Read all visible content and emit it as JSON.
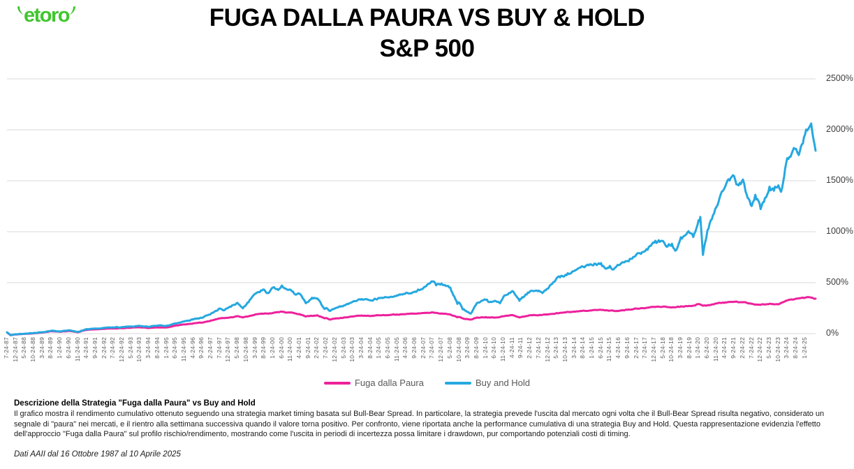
{
  "brand": {
    "logo_text": "etoro",
    "color": "#3FC62D"
  },
  "header": {
    "title_line1": "FUGA DALLA PAURA VS BUY & HOLD",
    "title_line2": "S&P 500"
  },
  "chart_data": {
    "type": "line",
    "title": "FUGA DALLA PAURA VS BUY & HOLD S&P 500",
    "xlabel": "",
    "ylabel": "",
    "ylim": [
      0,
      2500
    ],
    "y_tick_labels": [
      "0%",
      "500%",
      "1000%",
      "1500%",
      "2000%",
      "2500%"
    ],
    "grid": "horizontal",
    "legend_position": "bottom-center",
    "x_max_index": 91.2,
    "x_tick_labels": [
      "7-24-87",
      "12-24-87",
      "5-24-88",
      "10-24-88",
      "3-24-89",
      "8-24-89",
      "1-24-90",
      "6-24-90",
      "11-24-90",
      "4-24-91",
      "9-24-91",
      "2-24-92",
      "7-24-92",
      "12-24-92",
      "5-24-93",
      "10-24-93",
      "3-24-94",
      "8-24-94",
      "1-24-95",
      "6-24-95",
      "11-24-95",
      "4-24-96",
      "9-24-96",
      "2-24-97",
      "7-24-97",
      "12-24-97",
      "5-24-98",
      "10-24-98",
      "3-24-99",
      "8-24-99",
      "1-24-00",
      "6-24-00",
      "11-24-00",
      "4-24-01",
      "9-24-01",
      "2-24-02",
      "7-24-02",
      "12-24-02",
      "5-24-03",
      "10-24-03",
      "3-24-04",
      "8-24-04",
      "1-24-05",
      "6-24-05",
      "11-24-05",
      "4-24-06",
      "9-24-06",
      "2-24-07",
      "7-24-07",
      "12-24-07",
      "5-24-08",
      "10-24-08",
      "3-24-09",
      "8-24-09",
      "1-24-10",
      "6-24-10",
      "11-24-10",
      "4-24-11",
      "9-24-11",
      "2-24-12",
      "7-24-12",
      "12-24-12",
      "5-24-13",
      "10-24-13",
      "3-24-14",
      "8-24-14",
      "1-24-15",
      "6-24-15",
      "11-24-15",
      "4-24-16",
      "9-24-16",
      "2-24-17",
      "7-24-17",
      "12-24-17",
      "5-24-18",
      "10-24-18",
      "3-24-19",
      "8-24-19",
      "1-24-20",
      "6-24-20",
      "11-24-20",
      "4-24-21",
      "9-24-21",
      "2-24-22",
      "7-24-22",
      "12-24-22",
      "5-24-23",
      "10-24-23",
      "3-24-24",
      "8-24-24",
      "1-24-25"
    ],
    "value_unit": "% cumulative return",
    "series": [
      {
        "name": "Fuga dalla Paura",
        "color": "#ED219B",
        "points": [
          [
            0,
            12
          ],
          [
            0.4,
            -16
          ],
          [
            1,
            -8
          ],
          [
            2,
            -3
          ],
          [
            3,
            3
          ],
          [
            4,
            10
          ],
          [
            5,
            24
          ],
          [
            6,
            18
          ],
          [
            7,
            27
          ],
          [
            8,
            14
          ],
          [
            9,
            38
          ],
          [
            10,
            42
          ],
          [
            11,
            48
          ],
          [
            12,
            50
          ],
          [
            13,
            54
          ],
          [
            14,
            58
          ],
          [
            15,
            62
          ],
          [
            16,
            55
          ],
          [
            17,
            61
          ],
          [
            18,
            60
          ],
          [
            19,
            78
          ],
          [
            20,
            90
          ],
          [
            21,
            100
          ],
          [
            22,
            108
          ],
          [
            23,
            128
          ],
          [
            24,
            150
          ],
          [
            25,
            156
          ],
          [
            26,
            172
          ],
          [
            26.6,
            158
          ],
          [
            27,
            166
          ],
          [
            28,
            188
          ],
          [
            29,
            196
          ],
          [
            30,
            202
          ],
          [
            31,
            216
          ],
          [
            31.5,
            206
          ],
          [
            32,
            206
          ],
          [
            33,
            192
          ],
          [
            33.7,
            168
          ],
          [
            34,
            172
          ],
          [
            35,
            180
          ],
          [
            35.8,
            150
          ],
          [
            36,
            153
          ],
          [
            36.4,
            138
          ],
          [
            37,
            148
          ],
          [
            38,
            158
          ],
          [
            39,
            168
          ],
          [
            40,
            178
          ],
          [
            41,
            172
          ],
          [
            42,
            180
          ],
          [
            43,
            182
          ],
          [
            44,
            188
          ],
          [
            45,
            192
          ],
          [
            46,
            195
          ],
          [
            47,
            202
          ],
          [
            48,
            208
          ],
          [
            49,
            198
          ],
          [
            50,
            188
          ],
          [
            50.8,
            160
          ],
          [
            51,
            163
          ],
          [
            51.4,
            150
          ],
          [
            52,
            142
          ],
          [
            52.3,
            138
          ],
          [
            53,
            158
          ],
          [
            54,
            162
          ],
          [
            55,
            157
          ],
          [
            56,
            170
          ],
          [
            57,
            182
          ],
          [
            57.8,
            158
          ],
          [
            58,
            163
          ],
          [
            59,
            180
          ],
          [
            60,
            182
          ],
          [
            61,
            188
          ],
          [
            62,
            202
          ],
          [
            63,
            209
          ],
          [
            64,
            216
          ],
          [
            65,
            226
          ],
          [
            66,
            229
          ],
          [
            67,
            233
          ],
          [
            68,
            226
          ],
          [
            69,
            224
          ],
          [
            70,
            233
          ],
          [
            71,
            245
          ],
          [
            72,
            251
          ],
          [
            73,
            263
          ],
          [
            74,
            265
          ],
          [
            75,
            257
          ],
          [
            76,
            267
          ],
          [
            77,
            271
          ],
          [
            78,
            289
          ],
          [
            78.5,
            273
          ],
          [
            79,
            279
          ],
          [
            80,
            296
          ],
          [
            81,
            306
          ],
          [
            82,
            313
          ],
          [
            83,
            309
          ],
          [
            84,
            293
          ],
          [
            85,
            283
          ],
          [
            86,
            293
          ],
          [
            87,
            287
          ],
          [
            88,
            326
          ],
          [
            89,
            343
          ],
          [
            90,
            352
          ],
          [
            90.4,
            358
          ],
          [
            90.7,
            353
          ],
          [
            91.2,
            343
          ]
        ]
      },
      {
        "name": "Buy and Hold",
        "color": "#25A8E0",
        "points": [
          [
            0,
            12
          ],
          [
            0.4,
            -14
          ],
          [
            1,
            -6
          ],
          [
            2,
            -1
          ],
          [
            3,
            6
          ],
          [
            4,
            14
          ],
          [
            5,
            28
          ],
          [
            6,
            22
          ],
          [
            7,
            32
          ],
          [
            8,
            18
          ],
          [
            9,
            45
          ],
          [
            10,
            50
          ],
          [
            11,
            57
          ],
          [
            12,
            60
          ],
          [
            13,
            65
          ],
          [
            14,
            70
          ],
          [
            15,
            75
          ],
          [
            16,
            67
          ],
          [
            17,
            77
          ],
          [
            18,
            78
          ],
          [
            19,
            100
          ],
          [
            20,
            120
          ],
          [
            21,
            138
          ],
          [
            22,
            154
          ],
          [
            23,
            194
          ],
          [
            24,
            246
          ],
          [
            24.4,
            228
          ],
          [
            25,
            256
          ],
          [
            26,
            302
          ],
          [
            26.6,
            248
          ],
          [
            27,
            285
          ],
          [
            28,
            392
          ],
          [
            29,
            432
          ],
          [
            29.4,
            398
          ],
          [
            30,
            452
          ],
          [
            30.6,
            428
          ],
          [
            31,
            472
          ],
          [
            31.5,
            438
          ],
          [
            32,
            430
          ],
          [
            32.6,
            382
          ],
          [
            33,
            392
          ],
          [
            33.7,
            298
          ],
          [
            34,
            312
          ],
          [
            34.4,
            352
          ],
          [
            35,
            345
          ],
          [
            35.8,
            242
          ],
          [
            36,
            252
          ],
          [
            36.4,
            222
          ],
          [
            37,
            248
          ],
          [
            38,
            276
          ],
          [
            39,
            312
          ],
          [
            40,
            340
          ],
          [
            41,
            326
          ],
          [
            42,
            350
          ],
          [
            43,
            356
          ],
          [
            44,
            376
          ],
          [
            45,
            400
          ],
          [
            46,
            412
          ],
          [
            47,
            452
          ],
          [
            48,
            512
          ],
          [
            48.4,
            474
          ],
          [
            49,
            492
          ],
          [
            50,
            452
          ],
          [
            50.8,
            292
          ],
          [
            51,
            305
          ],
          [
            51.4,
            238
          ],
          [
            52,
            212
          ],
          [
            52.3,
            196
          ],
          [
            53,
            300
          ],
          [
            54,
            332
          ],
          [
            54.4,
            308
          ],
          [
            55,
            322
          ],
          [
            55.6,
            298
          ],
          [
            56,
            362
          ],
          [
            57,
            418
          ],
          [
            57.8,
            322
          ],
          [
            58,
            342
          ],
          [
            59,
            415
          ],
          [
            60,
            422
          ],
          [
            60.4,
            398
          ],
          [
            61,
            440
          ],
          [
            62,
            545
          ],
          [
            63,
            578
          ],
          [
            64,
            615
          ],
          [
            65,
            655
          ],
          [
            66,
            672
          ],
          [
            67,
            692
          ],
          [
            67.5,
            638
          ],
          [
            68,
            665
          ],
          [
            68.3,
            628
          ],
          [
            69,
            672
          ],
          [
            70,
            712
          ],
          [
            71,
            778
          ],
          [
            72,
            812
          ],
          [
            73,
            892
          ],
          [
            74,
            908
          ],
          [
            74.4,
            852
          ],
          [
            75,
            882
          ],
          [
            75.5,
            822
          ],
          [
            76,
            945
          ],
          [
            77,
            988
          ],
          [
            77.4,
            948
          ],
          [
            78,
            1112
          ],
          [
            78.2,
            1145
          ],
          [
            78.5,
            772
          ],
          [
            79,
            1012
          ],
          [
            80,
            1242
          ],
          [
            81,
            1442
          ],
          [
            82,
            1548
          ],
          [
            82.4,
            1462
          ],
          [
            83,
            1512
          ],
          [
            83.3,
            1395
          ],
          [
            84,
            1252
          ],
          [
            84.4,
            1362
          ],
          [
            85,
            1222
          ],
          [
            85.5,
            1332
          ],
          [
            86,
            1442
          ],
          [
            86.5,
            1402
          ],
          [
            87,
            1455
          ],
          [
            87.3,
            1392
          ],
          [
            88,
            1722
          ],
          [
            88.5,
            1765
          ],
          [
            89,
            1812
          ],
          [
            89.3,
            1752
          ],
          [
            90,
            1952
          ],
          [
            90.4,
            2012
          ],
          [
            90.7,
            2062
          ],
          [
            90.9,
            1935
          ],
          [
            91.2,
            1795
          ]
        ]
      }
    ]
  },
  "description": {
    "heading": "Descrizione della Strategia \"Fuga dalla Paura\" vs Buy and Hold",
    "body": "Il grafico mostra il rendimento cumulativo ottenuto seguendo una strategia market timing basata sul Bull-Bear Spread. In particolare, la strategia prevede l'uscita dal mercato ogni volta che il Bull-Bear Spread  risulta negativo, considerato un segnale di \"paura\" nei mercati, e il rientro alla settimana successiva quando il valore torna positivo. Per confronto, viene riportata anche la performance cumulativa di una strategia Buy and Hold. Questa rappresentazione evidenzia l'effetto dell'approccio \"Fuga dalla Paura\" sul profilo rischio/rendimento, mostrando come l'uscita in periodi di incertezza possa limitare i drawdown, pur comportando potenziali costi di timing.",
    "source_note": "Dati AAII dal 16 Ottobre 1987 al 10 Aprile 2025"
  }
}
